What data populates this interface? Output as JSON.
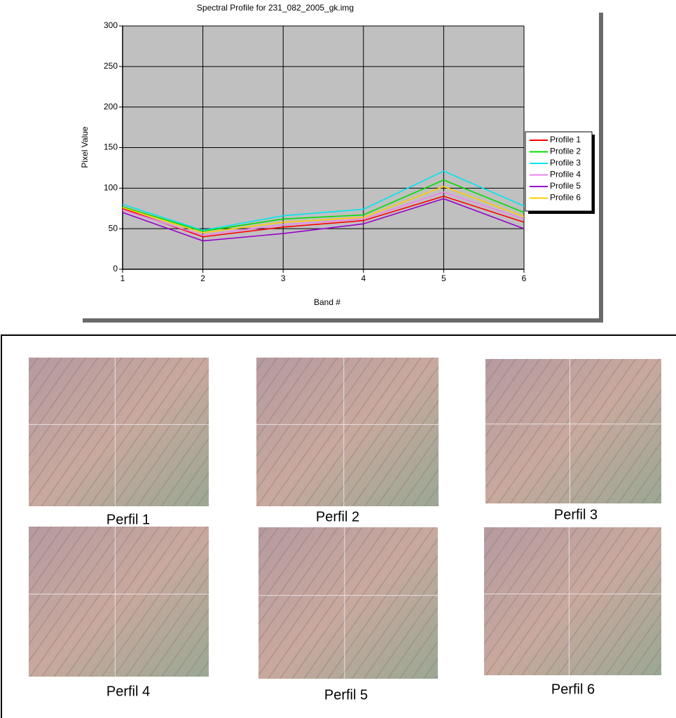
{
  "chart_data": {
    "type": "line",
    "title": "Spectral Profile for 231_082_2005_gk.img",
    "x_label": "Band #",
    "y_label": "Pixel Value",
    "x": [
      1,
      2,
      3,
      4,
      5,
      6
    ],
    "series": [
      {
        "name": "Profile 1",
        "color": "#ff0000",
        "values": [
          75,
          40,
          52,
          60,
          90,
          58
        ]
      },
      {
        "name": "Profile 2",
        "color": "#00dd00",
        "values": [
          77,
          47,
          62,
          67,
          110,
          70
        ]
      },
      {
        "name": "Profile 3",
        "color": "#00e5ee",
        "values": [
          80,
          48,
          66,
          74,
          121,
          78
        ]
      },
      {
        "name": "Profile 4",
        "color": "#ee82ee",
        "values": [
          73,
          42,
          55,
          62,
          95,
          62
        ]
      },
      {
        "name": "Profile 5",
        "color": "#9900cc",
        "values": [
          70,
          35,
          44,
          56,
          87,
          50
        ]
      },
      {
        "name": "Profile 6",
        "color": "#ffcc00",
        "values": [
          76,
          45,
          58,
          64,
          102,
          65
        ]
      }
    ],
    "xlim": [
      1,
      6
    ],
    "xticks": [
      1,
      2,
      3,
      4,
      5,
      6
    ],
    "ylim": [
      0,
      300
    ],
    "yticks": [
      0,
      50,
      100,
      150,
      200,
      250,
      300
    ],
    "grid": true,
    "legend": "right"
  },
  "panels": [
    {
      "caption": "Perfil 1"
    },
    {
      "caption": "Perfil 2"
    },
    {
      "caption": "Perfil 3"
    },
    {
      "caption": "Perfil 4"
    },
    {
      "caption": "Perfil 5"
    },
    {
      "caption": "Perfil 6"
    }
  ]
}
